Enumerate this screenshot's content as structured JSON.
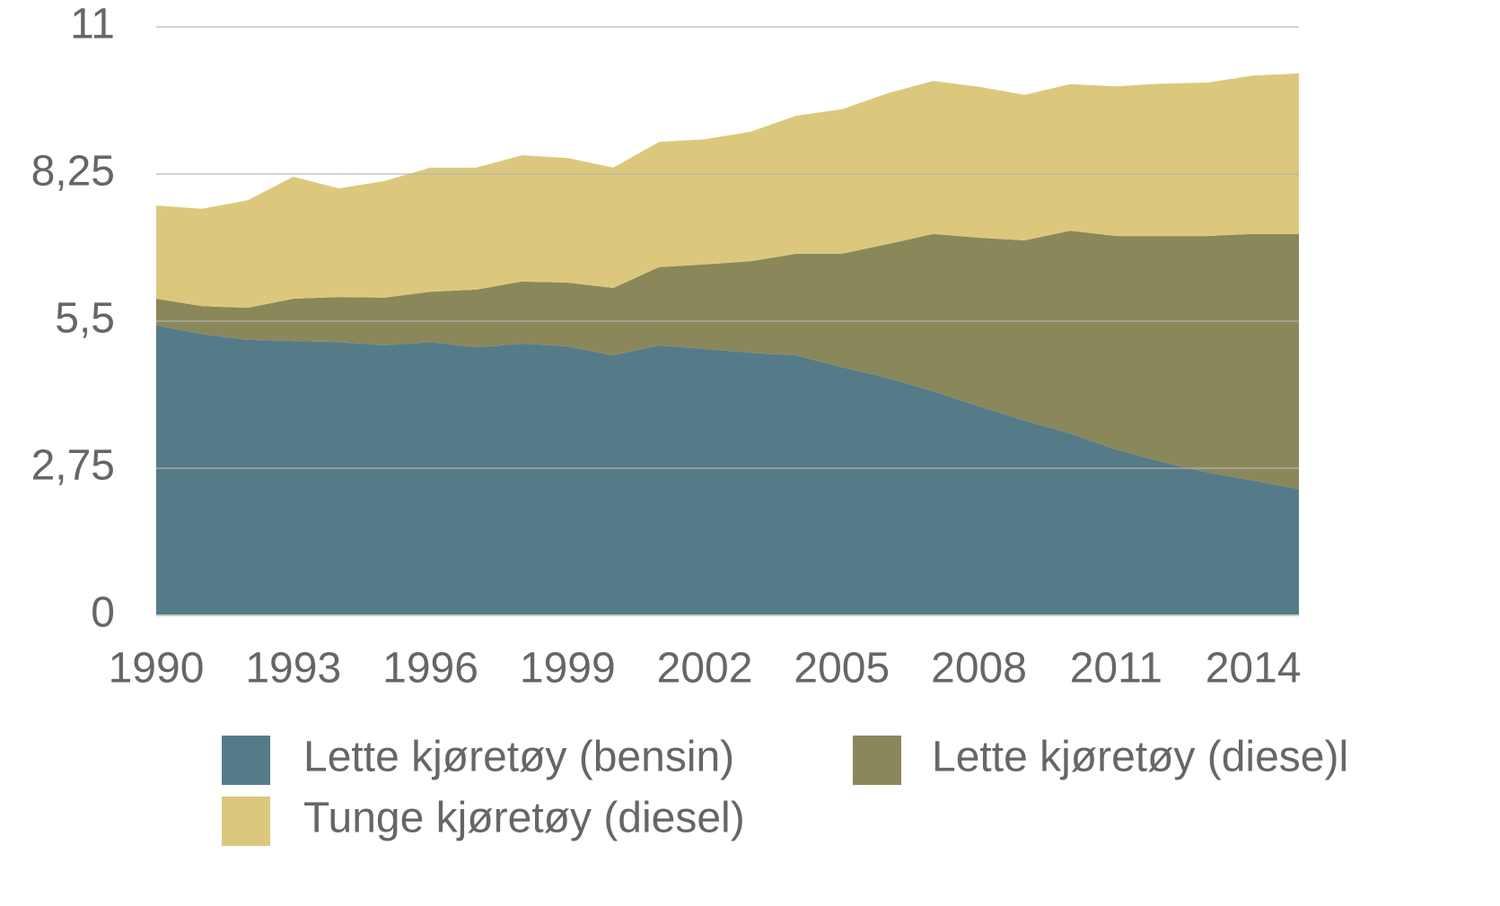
{
  "chart_data": {
    "type": "stacked_area",
    "x": [
      1990,
      1991,
      1992,
      1993,
      1994,
      1995,
      1996,
      1997,
      1998,
      1999,
      2000,
      2001,
      2002,
      2003,
      2004,
      2005,
      2006,
      2007,
      2008,
      2009,
      2010,
      2011,
      2012,
      2013,
      2014,
      2015
    ],
    "xlim": [
      1990,
      2015
    ],
    "xticks": [
      1990,
      1993,
      1996,
      1999,
      2002,
      2005,
      2008,
      2011,
      2014
    ],
    "ylim": [
      0,
      11
    ],
    "yticks": [
      0,
      {
        "value": 2.75,
        "label": "2,75"
      },
      {
        "value": 5.5,
        "label": "5,5"
      },
      {
        "value": 8.25,
        "label": "8,25"
      },
      11
    ],
    "grid": true,
    "series": [
      {
        "name": "Lette kjøretøy (bensin)",
        "color": "#557b89",
        "values": [
          5.42,
          5.26,
          5.15,
          5.13,
          5.11,
          5.05,
          5.11,
          5.01,
          5.08,
          5.03,
          4.86,
          5.05,
          4.98,
          4.91,
          4.86,
          4.64,
          4.44,
          4.19,
          3.91,
          3.64,
          3.4,
          3.1,
          2.87,
          2.67,
          2.52,
          2.36
        ]
      },
      {
        "name": "Lette kjøretøy (diese)l",
        "color": "#8a875b",
        "values": [
          0.5,
          0.52,
          0.6,
          0.79,
          0.84,
          0.89,
          0.94,
          1.08,
          1.16,
          1.19,
          1.26,
          1.46,
          1.58,
          1.71,
          1.9,
          2.12,
          2.5,
          2.94,
          3.15,
          3.37,
          3.79,
          3.99,
          4.22,
          4.42,
          4.61,
          4.77
        ]
      },
      {
        "name": "Tunge kjøretøy (diesel)",
        "color": "#dcc87c",
        "values": [
          1.74,
          1.82,
          2.01,
          2.28,
          2.03,
          2.18,
          2.32,
          2.28,
          2.36,
          2.33,
          2.25,
          2.34,
          2.34,
          2.42,
          2.58,
          2.7,
          2.82,
          2.86,
          2.82,
          2.72,
          2.74,
          2.8,
          2.85,
          2.87,
          2.96,
          3.0
        ]
      }
    ]
  }
}
